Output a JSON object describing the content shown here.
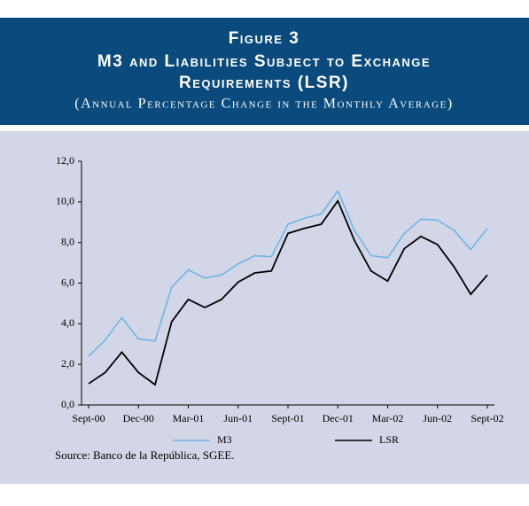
{
  "chart_data": {
    "type": "line",
    "figure_label": "Figure 3",
    "title": [
      "M3 and Liabilities Subject to Exchange",
      "Requirements (LSR)"
    ],
    "subtitle": "(Annual Percentage Change in the Monthly Average)",
    "source": "Source: Banco de la República, SGEE.",
    "categories": [
      "Sept-00",
      null,
      null,
      "Dec-00",
      null,
      null,
      "Mar-01",
      null,
      null,
      "Jun-01",
      null,
      null,
      "Sept-01",
      null,
      null,
      "Dec-01",
      null,
      null,
      "Mar-02",
      null,
      null,
      "Jun-02",
      null,
      null,
      "Sept-02"
    ],
    "series": [
      {
        "name": "M3",
        "color": "#6cb6ea",
        "values": [
          2.4,
          3.2,
          4.3,
          3.25,
          3.15,
          5.8,
          6.65,
          6.25,
          6.4,
          6.95,
          7.35,
          7.3,
          8.9,
          9.2,
          9.4,
          10.55,
          8.6,
          7.35,
          7.25,
          8.45,
          9.15,
          9.1,
          8.6,
          7.65,
          8.7
        ]
      },
      {
        "name": "LSR",
        "color": "#000000",
        "values": [
          1.05,
          1.6,
          2.6,
          1.6,
          1.0,
          4.1,
          5.2,
          4.8,
          5.2,
          6.05,
          6.5,
          6.6,
          8.45,
          8.7,
          8.9,
          10.05,
          8.1,
          6.6,
          6.1,
          7.7,
          8.3,
          7.9,
          6.8,
          5.45,
          6.4
        ]
      }
    ],
    "ylim": [
      0,
      12
    ],
    "yticks": [
      {
        "value": 0,
        "label": "0,0"
      },
      {
        "value": 2,
        "label": "2,0"
      },
      {
        "value": 4,
        "label": "4,0"
      },
      {
        "value": 6,
        "label": "6,0"
      },
      {
        "value": 8,
        "label": "8,0"
      },
      {
        "value": 10,
        "label": "10,0"
      },
      {
        "value": 12,
        "label": "12,0"
      }
    ],
    "grid": false,
    "legend": "bottom"
  }
}
